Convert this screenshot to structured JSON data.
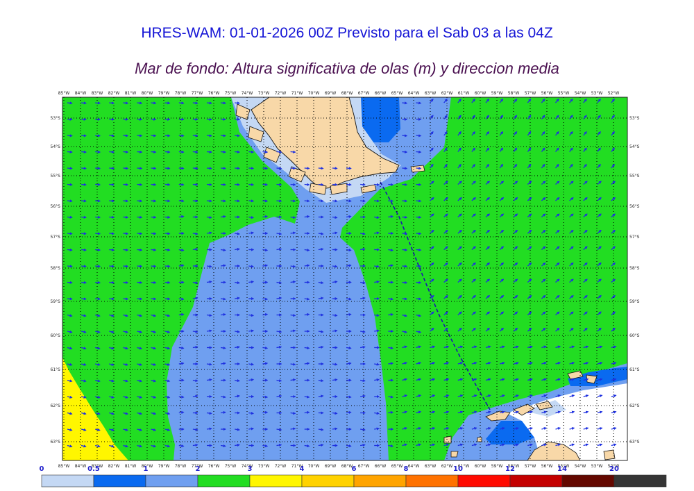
{
  "title": "HRES-WAM: 01-01-2026 00Z Previsto para el Sab 03 a las 04Z",
  "subtitle": "Mar de fondo: Altura significativa de olas (m) y direccion media",
  "map": {
    "lon_labels": [
      "85°W",
      "84°W",
      "83°W",
      "82°W",
      "81°W",
      "80°W",
      "79°W",
      "78°W",
      "77°W",
      "76°W",
      "75°W",
      "74°W",
      "73°W",
      "72°W",
      "71°W",
      "70°W",
      "69°W",
      "68°W",
      "67°W",
      "66°W",
      "65°W",
      "64°W",
      "63°W",
      "62°W",
      "61°W",
      "60°W",
      "59°W",
      "58°W",
      "57°W",
      "56°W",
      "55°W",
      "54°W",
      "53°W",
      "52°W"
    ],
    "lat_labels": [
      "53°S",
      "54°S",
      "55°S",
      "56°S",
      "57°S",
      "58°S",
      "59°S",
      "60°S",
      "61°S",
      "62°S",
      "63°S"
    ],
    "colors": {
      "land": "#f8d8a8",
      "ocean_green": "#22dd22",
      "ocean_light_blue": "#6f9ff0",
      "ocean_mid_blue": "#0a6af0",
      "ocean_pale": "#c4d8f4",
      "yellow": "#fff600",
      "arrow": "#1e30e0",
      "route": "#1818b0"
    }
  },
  "colorbar": {
    "labels": [
      "0",
      "0.5",
      "1",
      "2",
      "3",
      "4",
      "6",
      "8",
      "10",
      "12",
      "14",
      "20"
    ],
    "colors": [
      "#c4d8f4",
      "#0a6af0",
      "#6f9ff0",
      "#22dd22",
      "#fff600",
      "#ffd200",
      "#ffa400",
      "#ff7200",
      "#ff0a00",
      "#c40000",
      "#640800",
      "#353535"
    ]
  }
}
